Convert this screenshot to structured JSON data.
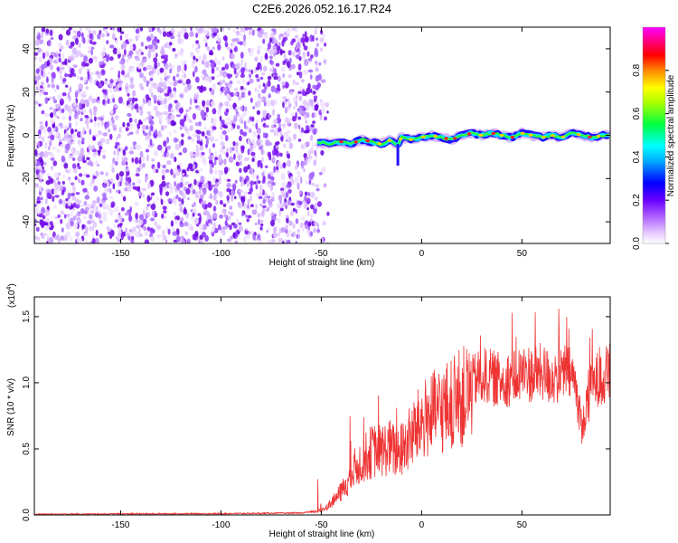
{
  "figure_title": "C2E6.2026.052.16.17.R24",
  "chart_data": [
    {
      "type": "heatmap",
      "title": "C2E6.2026.052.16.17.R24",
      "xlabel": "Height of straight line (km)",
      "ylabel": "Frequency (Hz)",
      "xlim": [
        -193,
        94
      ],
      "ylim": [
        -50,
        50
      ],
      "xticks": [
        -150,
        -100,
        -50,
        0,
        50
      ],
      "yticks": [
        -40,
        -20,
        0,
        20,
        40
      ],
      "noise_region_x": [
        -193,
        -52
      ],
      "signal_ridge": {
        "x": [
          -52,
          -45,
          -40,
          -35,
          -30,
          -25,
          -20,
          -15,
          -12,
          -10,
          -5,
          0,
          5,
          10,
          15,
          20,
          25,
          30,
          35,
          40,
          45,
          50,
          55,
          60,
          65,
          70,
          75,
          80,
          85,
          90,
          94
        ],
        "frequency": [
          -3,
          -4,
          -3,
          -4,
          -2,
          -3,
          -4,
          -2,
          -5,
          -1,
          -2,
          -1,
          0,
          -1,
          -2,
          0,
          1,
          0,
          1,
          0,
          -1,
          1,
          0,
          -1,
          0,
          -1,
          1,
          0,
          -1,
          0,
          0
        ]
      },
      "colorbar": {
        "label": "Normalized spectral amplitude",
        "ticks": [
          0.0,
          0.2,
          0.4,
          0.6,
          0.8
        ],
        "colors": [
          "#ffffff",
          "#cc88ff",
          "#7700ff",
          "#0000ff",
          "#00ffff",
          "#00ff00",
          "#ffff00",
          "#ff0000",
          "#ff0099",
          "#ff00ff"
        ]
      }
    },
    {
      "type": "line",
      "xlabel": "Height of straight line (km)",
      "ylabel": "SNR (10 * v/v)",
      "yscale_label": "(x10",
      "yscale_exp": "4",
      "line_color": "#ee3333",
      "xlim": [
        -193,
        94
      ],
      "ylim": [
        0,
        1.65
      ],
      "xticks": [
        -150,
        -100,
        -50,
        0,
        50
      ],
      "yticks": [
        0.0,
        0.5,
        1.0,
        1.5
      ],
      "ytick_labels": [
        "0.0",
        "0.5",
        "1.0",
        "1.5"
      ],
      "x": [
        -193,
        -150,
        -100,
        -60,
        -52,
        -48,
        -44,
        -40,
        -36,
        -32,
        -28,
        -24,
        -20,
        -16,
        -12,
        -8,
        -4,
        0,
        4,
        8,
        12,
        16,
        20,
        24,
        28,
        32,
        36,
        40,
        44,
        48,
        52,
        56,
        60,
        64,
        68,
        72,
        76,
        78,
        80,
        82,
        84,
        86,
        88,
        90,
        94
      ],
      "y": [
        0.005,
        0.008,
        0.01,
        0.015,
        0.03,
        0.06,
        0.12,
        0.2,
        0.3,
        0.42,
        0.5,
        0.55,
        0.55,
        0.58,
        0.52,
        0.6,
        0.7,
        0.8,
        0.85,
        0.88,
        0.92,
        0.95,
        1.0,
        1.05,
        1.1,
        1.12,
        1.1,
        1.08,
        1.1,
        1.12,
        1.15,
        1.12,
        1.15,
        1.1,
        1.12,
        1.15,
        1.1,
        0.9,
        0.7,
        0.8,
        1.0,
        1.05,
        1.1,
        1.1,
        1.15
      ]
    }
  ]
}
